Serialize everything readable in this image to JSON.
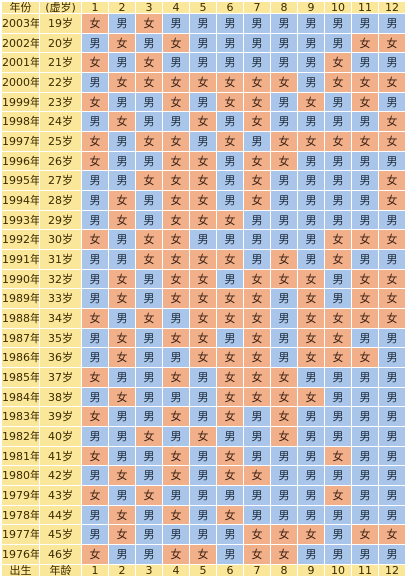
{
  "header": {
    "year_label": "年份",
    "age_label": "(虚岁)",
    "months": [
      "1",
      "2",
      "3",
      "4",
      "5",
      "6",
      "7",
      "8",
      "9",
      "10",
      "11",
      "12"
    ]
  },
  "footer": {
    "year_label": "出生",
    "age_label": "年龄",
    "months": [
      "1",
      "2",
      "3",
      "4",
      "5",
      "6",
      "7",
      "8",
      "9",
      "10",
      "11",
      "12"
    ]
  },
  "colors": {
    "header_bg": "#fbe79a",
    "boy_bg": "#a9c6ea",
    "girl_bg": "#f2b08a"
  },
  "rows": [
    {
      "year": "2003年",
      "age": "19岁",
      "cells": [
        "女",
        "男",
        "女",
        "男",
        "男",
        "男",
        "男",
        "男",
        "男",
        "男",
        "男",
        "男"
      ]
    },
    {
      "year": "2002年",
      "age": "20岁",
      "cells": [
        "男",
        "女",
        "男",
        "女",
        "男",
        "男",
        "男",
        "男",
        "男",
        "男",
        "女",
        "女"
      ]
    },
    {
      "year": "2001年",
      "age": "21岁",
      "cells": [
        "女",
        "男",
        "女",
        "男",
        "男",
        "男",
        "男",
        "男",
        "男",
        "女",
        "男",
        "男"
      ]
    },
    {
      "year": "2000年",
      "age": "22岁",
      "cells": [
        "男",
        "女",
        "女",
        "女",
        "女",
        "女",
        "女",
        "女",
        "男",
        "女",
        "女",
        "女"
      ]
    },
    {
      "year": "1999年",
      "age": "23岁",
      "cells": [
        "女",
        "男",
        "男",
        "女",
        "男",
        "女",
        "女",
        "男",
        "女",
        "男",
        "女",
        "男"
      ]
    },
    {
      "year": "1998年",
      "age": "24岁",
      "cells": [
        "男",
        "女",
        "男",
        "男",
        "女",
        "男",
        "女",
        "男",
        "男",
        "男",
        "男",
        "女"
      ]
    },
    {
      "year": "1997年",
      "age": "25岁",
      "cells": [
        "女",
        "男",
        "女",
        "女",
        "男",
        "女",
        "男",
        "女",
        "女",
        "女",
        "女",
        "女"
      ]
    },
    {
      "year": "1996年",
      "age": "26岁",
      "cells": [
        "女",
        "男",
        "男",
        "女",
        "女",
        "男",
        "女",
        "女",
        "男",
        "男",
        "男",
        "男"
      ]
    },
    {
      "year": "1995年",
      "age": "27岁",
      "cells": [
        "男",
        "男",
        "女",
        "女",
        "女",
        "男",
        "女",
        "男",
        "男",
        "男",
        "男",
        "女"
      ]
    },
    {
      "year": "1994年",
      "age": "28岁",
      "cells": [
        "男",
        "女",
        "男",
        "女",
        "女",
        "男",
        "女",
        "男",
        "男",
        "男",
        "男",
        "女"
      ]
    },
    {
      "year": "1993年",
      "age": "29岁",
      "cells": [
        "男",
        "女",
        "男",
        "女",
        "女",
        "女",
        "男",
        "男",
        "男",
        "男",
        "男",
        "男"
      ]
    },
    {
      "year": "1992年",
      "age": "30岁",
      "cells": [
        "女",
        "男",
        "女",
        "女",
        "男",
        "男",
        "男",
        "男",
        "男",
        "女",
        "女",
        "女"
      ]
    },
    {
      "year": "1991年",
      "age": "31岁",
      "cells": [
        "男",
        "男",
        "女",
        "女",
        "女",
        "女",
        "男",
        "女",
        "男",
        "女",
        "男",
        "男"
      ]
    },
    {
      "year": "1990年",
      "age": "32岁",
      "cells": [
        "男",
        "女",
        "男",
        "女",
        "女",
        "男",
        "女",
        "女",
        "女",
        "男",
        "女",
        "女"
      ]
    },
    {
      "year": "1989年",
      "age": "33岁",
      "cells": [
        "男",
        "女",
        "男",
        "女",
        "女",
        "女",
        "女",
        "男",
        "女",
        "男",
        "女",
        "女"
      ]
    },
    {
      "year": "1988年",
      "age": "34岁",
      "cells": [
        "女",
        "男",
        "女",
        "男",
        "女",
        "女",
        "女",
        "男",
        "女",
        "女",
        "女",
        "女"
      ]
    },
    {
      "year": "1987年",
      "age": "35岁",
      "cells": [
        "男",
        "女",
        "男",
        "女",
        "女",
        "男",
        "女",
        "男",
        "女",
        "女",
        "男",
        "男"
      ]
    },
    {
      "year": "1986年",
      "age": "36岁",
      "cells": [
        "男",
        "女",
        "男",
        "男",
        "女",
        "女",
        "女",
        "男",
        "女",
        "女",
        "女",
        "男"
      ]
    },
    {
      "year": "1985年",
      "age": "37岁",
      "cells": [
        "女",
        "男",
        "男",
        "女",
        "男",
        "女",
        "女",
        "女",
        "男",
        "男",
        "男",
        "男"
      ]
    },
    {
      "year": "1984年",
      "age": "38岁",
      "cells": [
        "男",
        "女",
        "男",
        "男",
        "男",
        "女",
        "女",
        "女",
        "女",
        "男",
        "男",
        "男"
      ]
    },
    {
      "year": "1983年",
      "age": "39岁",
      "cells": [
        "女",
        "男",
        "男",
        "女",
        "男",
        "女",
        "男",
        "女",
        "男",
        "男",
        "男",
        "男"
      ]
    },
    {
      "year": "1982年",
      "age": "40岁",
      "cells": [
        "男",
        "男",
        "女",
        "男",
        "女",
        "男",
        "男",
        "女",
        "男",
        "男",
        "男",
        "男"
      ]
    },
    {
      "year": "1981年",
      "age": "41岁",
      "cells": [
        "女",
        "男",
        "男",
        "女",
        "男",
        "女",
        "男",
        "男",
        "男",
        "女",
        "男",
        "男"
      ]
    },
    {
      "year": "1980年",
      "age": "42岁",
      "cells": [
        "男",
        "女",
        "男",
        "女",
        "男",
        "女",
        "女",
        "男",
        "男",
        "男",
        "男",
        "男"
      ]
    },
    {
      "year": "1979年",
      "age": "43岁",
      "cells": [
        "女",
        "男",
        "女",
        "男",
        "男",
        "男",
        "男",
        "男",
        "男",
        "女",
        "男",
        "男"
      ]
    },
    {
      "year": "1978年",
      "age": "44岁",
      "cells": [
        "男",
        "女",
        "男",
        "女",
        "男",
        "女",
        "男",
        "男",
        "男",
        "男",
        "男",
        "男"
      ]
    },
    {
      "year": "1977年",
      "age": "45岁",
      "cells": [
        "男",
        "女",
        "男",
        "男",
        "男",
        "男",
        "女",
        "女",
        "女",
        "男",
        "女",
        "女"
      ]
    },
    {
      "year": "1976年",
      "age": "46岁",
      "cells": [
        "女",
        "男",
        "男",
        "女",
        "女",
        "男",
        "女",
        "女",
        "男",
        "男",
        "男",
        "男"
      ]
    }
  ]
}
